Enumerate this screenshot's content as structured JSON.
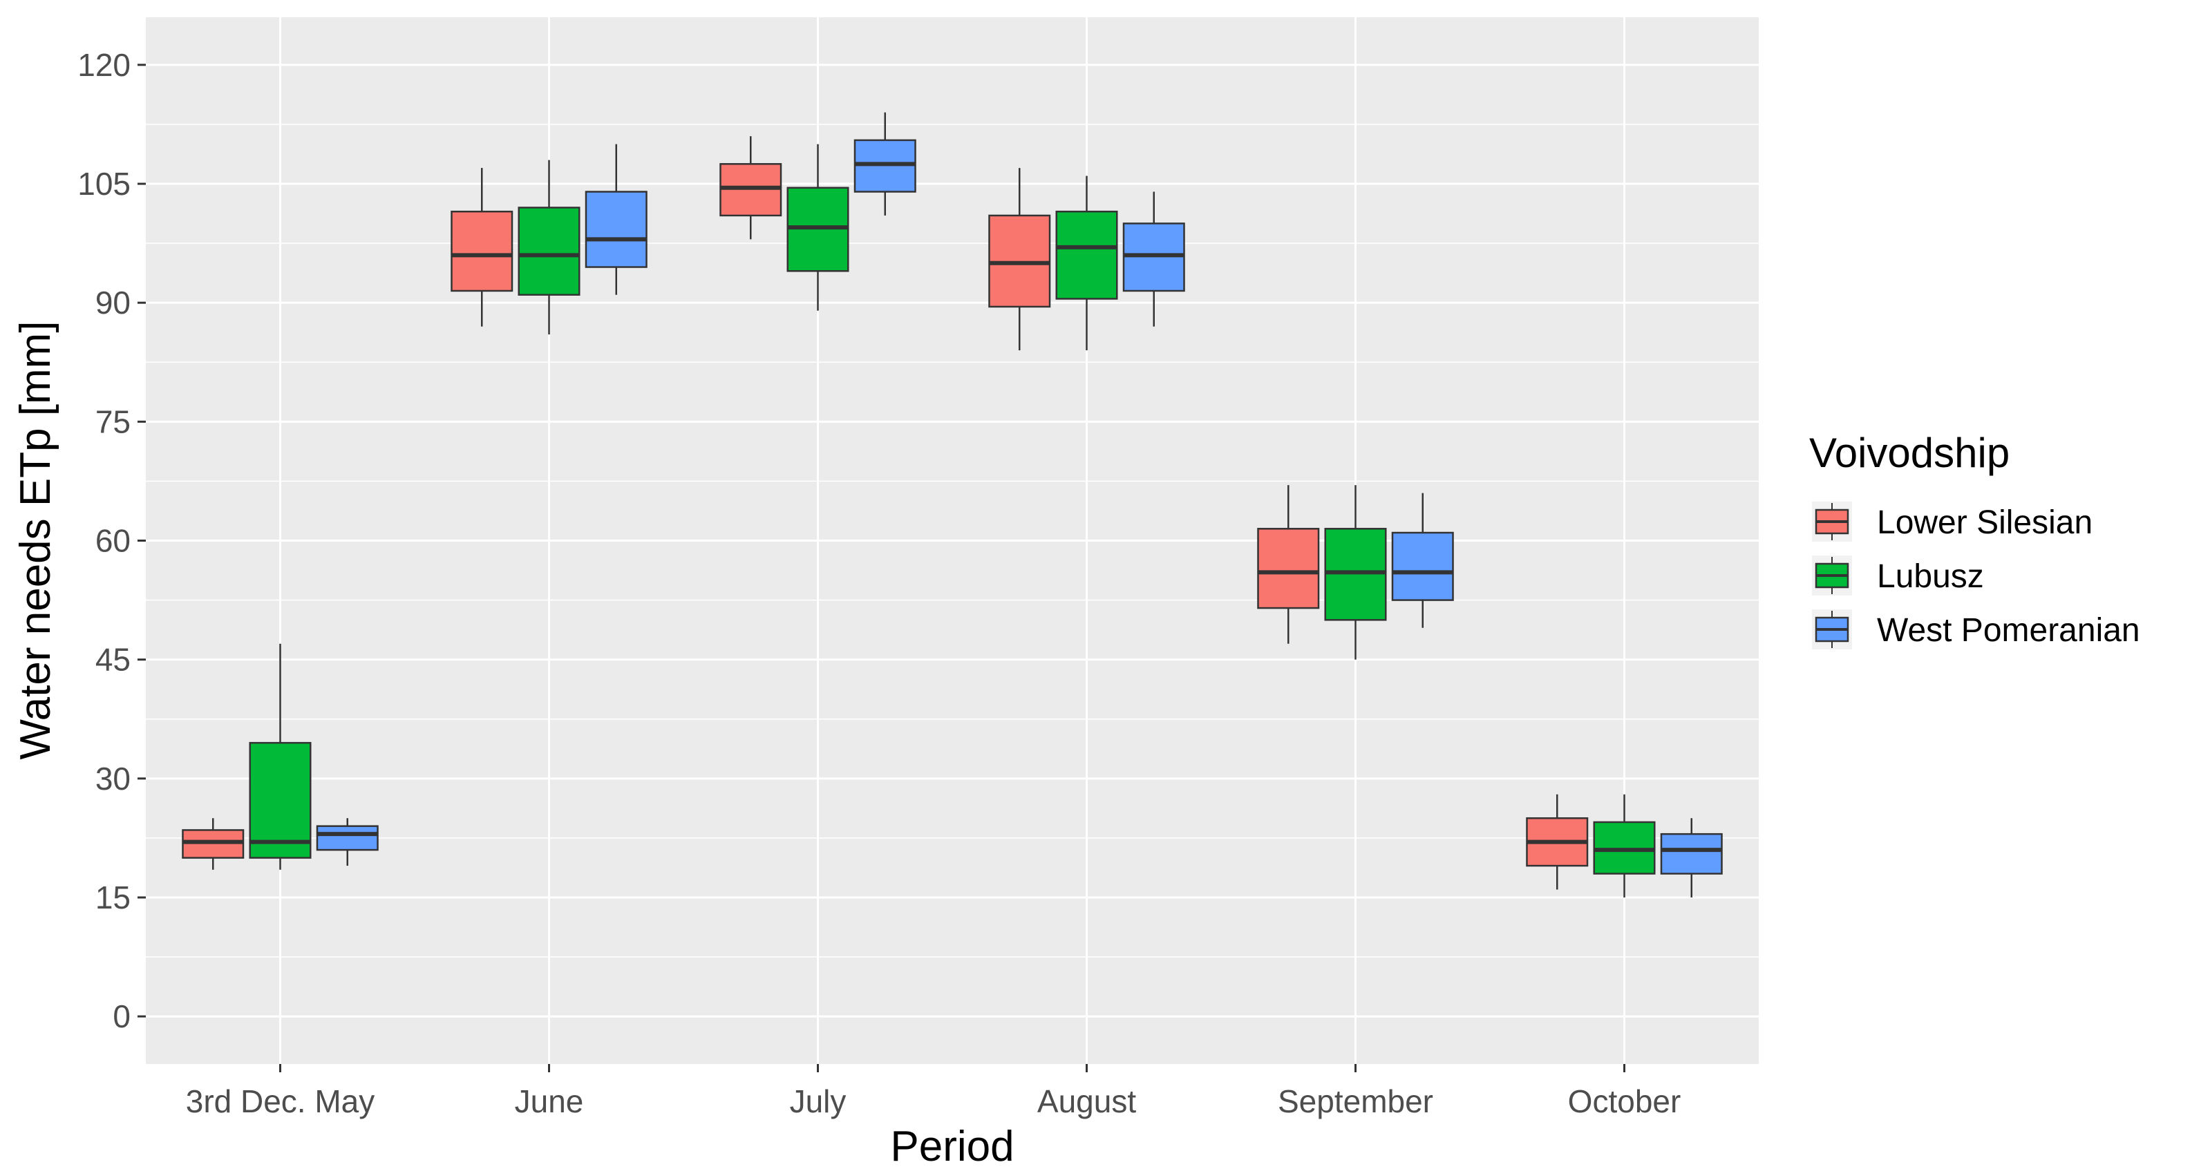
{
  "chart_data": {
    "type": "boxplot",
    "title": "",
    "xlabel": "Period",
    "ylabel": "Water needs ETp [mm]",
    "ylim": [
      -6,
      126
    ],
    "yticks": [
      0,
      15,
      30,
      45,
      60,
      75,
      90,
      105,
      120
    ],
    "ytick_labels": [
      "0",
      "15",
      "30",
      "45",
      "60",
      "75",
      "90",
      "105",
      "120"
    ],
    "grid": true,
    "categories": [
      "3rd Dec. May",
      "June",
      "July",
      "August",
      "September",
      "October"
    ],
    "legend": {
      "title": "Voivodship",
      "position": "right"
    },
    "series": [
      {
        "name": "Lower Silesian",
        "color": "#F8766D",
        "boxes": [
          {
            "min": 18.5,
            "q1": 20,
            "median": 22,
            "q3": 23.5,
            "max": 25
          },
          {
            "min": 87,
            "q1": 91.5,
            "median": 96,
            "q3": 101.5,
            "max": 107
          },
          {
            "min": 98,
            "q1": 101,
            "median": 104.5,
            "q3": 107.5,
            "max": 111
          },
          {
            "min": 84,
            "q1": 89.5,
            "median": 95,
            "q3": 101,
            "max": 107
          },
          {
            "min": 47,
            "q1": 51.5,
            "median": 56,
            "q3": 61.5,
            "max": 67
          },
          {
            "min": 16,
            "q1": 19,
            "median": 22,
            "q3": 25,
            "max": 28
          }
        ]
      },
      {
        "name": "Lubusz",
        "color": "#00BA38",
        "boxes": [
          {
            "min": 18.5,
            "q1": 20,
            "median": 22,
            "q3": 34.5,
            "max": 47
          },
          {
            "min": 86,
            "q1": 91,
            "median": 96,
            "q3": 102,
            "max": 108
          },
          {
            "min": 89,
            "q1": 94,
            "median": 99.5,
            "q3": 104.5,
            "max": 110
          },
          {
            "min": 84,
            "q1": 90.5,
            "median": 97,
            "q3": 101.5,
            "max": 106
          },
          {
            "min": 45,
            "q1": 50,
            "median": 56,
            "q3": 61.5,
            "max": 67
          },
          {
            "min": 15,
            "q1": 18,
            "median": 21,
            "q3": 24.5,
            "max": 28
          }
        ]
      },
      {
        "name": "West Pomeranian",
        "color": "#619CFF",
        "boxes": [
          {
            "min": 19,
            "q1": 21,
            "median": 23,
            "q3": 24,
            "max": 25
          },
          {
            "min": 91,
            "q1": 94.5,
            "median": 98,
            "q3": 104,
            "max": 110
          },
          {
            "min": 101,
            "q1": 104,
            "median": 107.5,
            "q3": 110.5,
            "max": 114
          },
          {
            "min": 87,
            "q1": 91.5,
            "median": 96,
            "q3": 100,
            "max": 104
          },
          {
            "min": 49,
            "q1": 52.5,
            "median": 56,
            "q3": 61,
            "max": 66
          },
          {
            "min": 15,
            "q1": 18,
            "median": 21,
            "q3": 23,
            "max": 25
          }
        ]
      }
    ]
  }
}
